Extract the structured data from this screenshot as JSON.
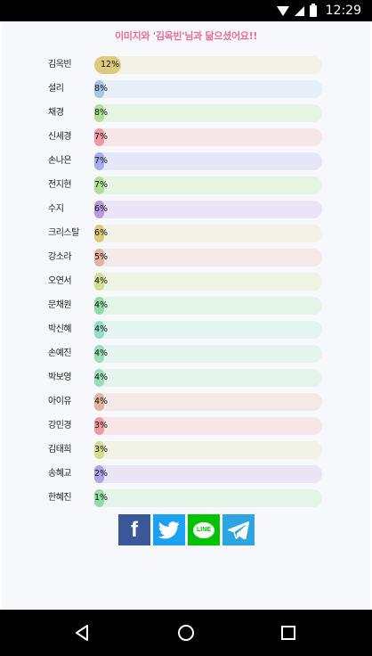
{
  "status_bar": {
    "time": "12:29",
    "icons": [
      "wifi-icon",
      "signal-icon",
      "battery-icon"
    ]
  },
  "title": "이미지와 '김옥빈'님과 닮으셨어요!!",
  "results": [
    {
      "name": "김옥빈",
      "percent": "12%",
      "value": 12,
      "track": "#f3f2e6",
      "fill": "#dccb7e"
    },
    {
      "name": "설리",
      "percent": "8%",
      "value": 8,
      "track": "#e6eef8",
      "fill": "#a8c4e6"
    },
    {
      "name": "채경",
      "percent": "8%",
      "value": 8,
      "track": "#e6f4e4",
      "fill": "#b3dd9c"
    },
    {
      "name": "신세경",
      "percent": "7%",
      "value": 7,
      "track": "#f7e6e8",
      "fill": "#ec9ba3"
    },
    {
      "name": "손나은",
      "percent": "7%",
      "value": 7,
      "track": "#e5e6f7",
      "fill": "#a7acea"
    },
    {
      "name": "전지현",
      "percent": "7%",
      "value": 7,
      "track": "#e6f4e4",
      "fill": "#b1dc9a"
    },
    {
      "name": "수지",
      "percent": "6%",
      "value": 6,
      "track": "#ebe4f6",
      "fill": "#b79be0"
    },
    {
      "name": "크리스탈",
      "percent": "6%",
      "value": 6,
      "track": "#f3f2e6",
      "fill": "#dccb7e"
    },
    {
      "name": "강소라",
      "percent": "5%",
      "value": 5,
      "track": "#f5e9e7",
      "fill": "#e2b39f"
    },
    {
      "name": "오연서",
      "percent": "4%",
      "value": 4,
      "track": "#eef3e2",
      "fill": "#cfe095"
    },
    {
      "name": "문채원",
      "percent": "4%",
      "value": 4,
      "track": "#e3f5e7",
      "fill": "#95dba8"
    },
    {
      "name": "박신혜",
      "percent": "4%",
      "value": 4,
      "track": "#e3f5f1",
      "fill": "#98dbc8"
    },
    {
      "name": "손예진",
      "percent": "4%",
      "value": 4,
      "track": "#e3f5ec",
      "fill": "#9bdcb9"
    },
    {
      "name": "박보영",
      "percent": "4%",
      "value": 4,
      "track": "#e3f5ec",
      "fill": "#9bdcb9"
    },
    {
      "name": "아이유",
      "percent": "4%",
      "value": 4,
      "track": "#f5e9e7",
      "fill": "#e2b39f"
    },
    {
      "name": "강민경",
      "percent": "3%",
      "value": 3,
      "track": "#f7e6e8",
      "fill": "#ec9ba3"
    },
    {
      "name": "김태희",
      "percent": "3%",
      "value": 3,
      "track": "#f2f3e4",
      "fill": "#d4dd93"
    },
    {
      "name": "송혜교",
      "percent": "2%",
      "value": 2,
      "track": "#e9e5f6",
      "fill": "#aea3e4"
    },
    {
      "name": "한혜진",
      "percent": "1%",
      "value": 1,
      "track": "#e3f5e7",
      "fill": "#95dba8"
    }
  ],
  "share_buttons": [
    {
      "name": "facebook-icon",
      "color": "#3b5998"
    },
    {
      "name": "twitter-icon",
      "color": "#1da1f2"
    },
    {
      "name": "line-icon",
      "label": "LINE",
      "color": "#00c300"
    },
    {
      "name": "telegram-icon",
      "color": "#2ca5e0"
    }
  ],
  "nav_bar": {
    "buttons": [
      "back-icon",
      "home-icon",
      "recents-icon"
    ]
  }
}
